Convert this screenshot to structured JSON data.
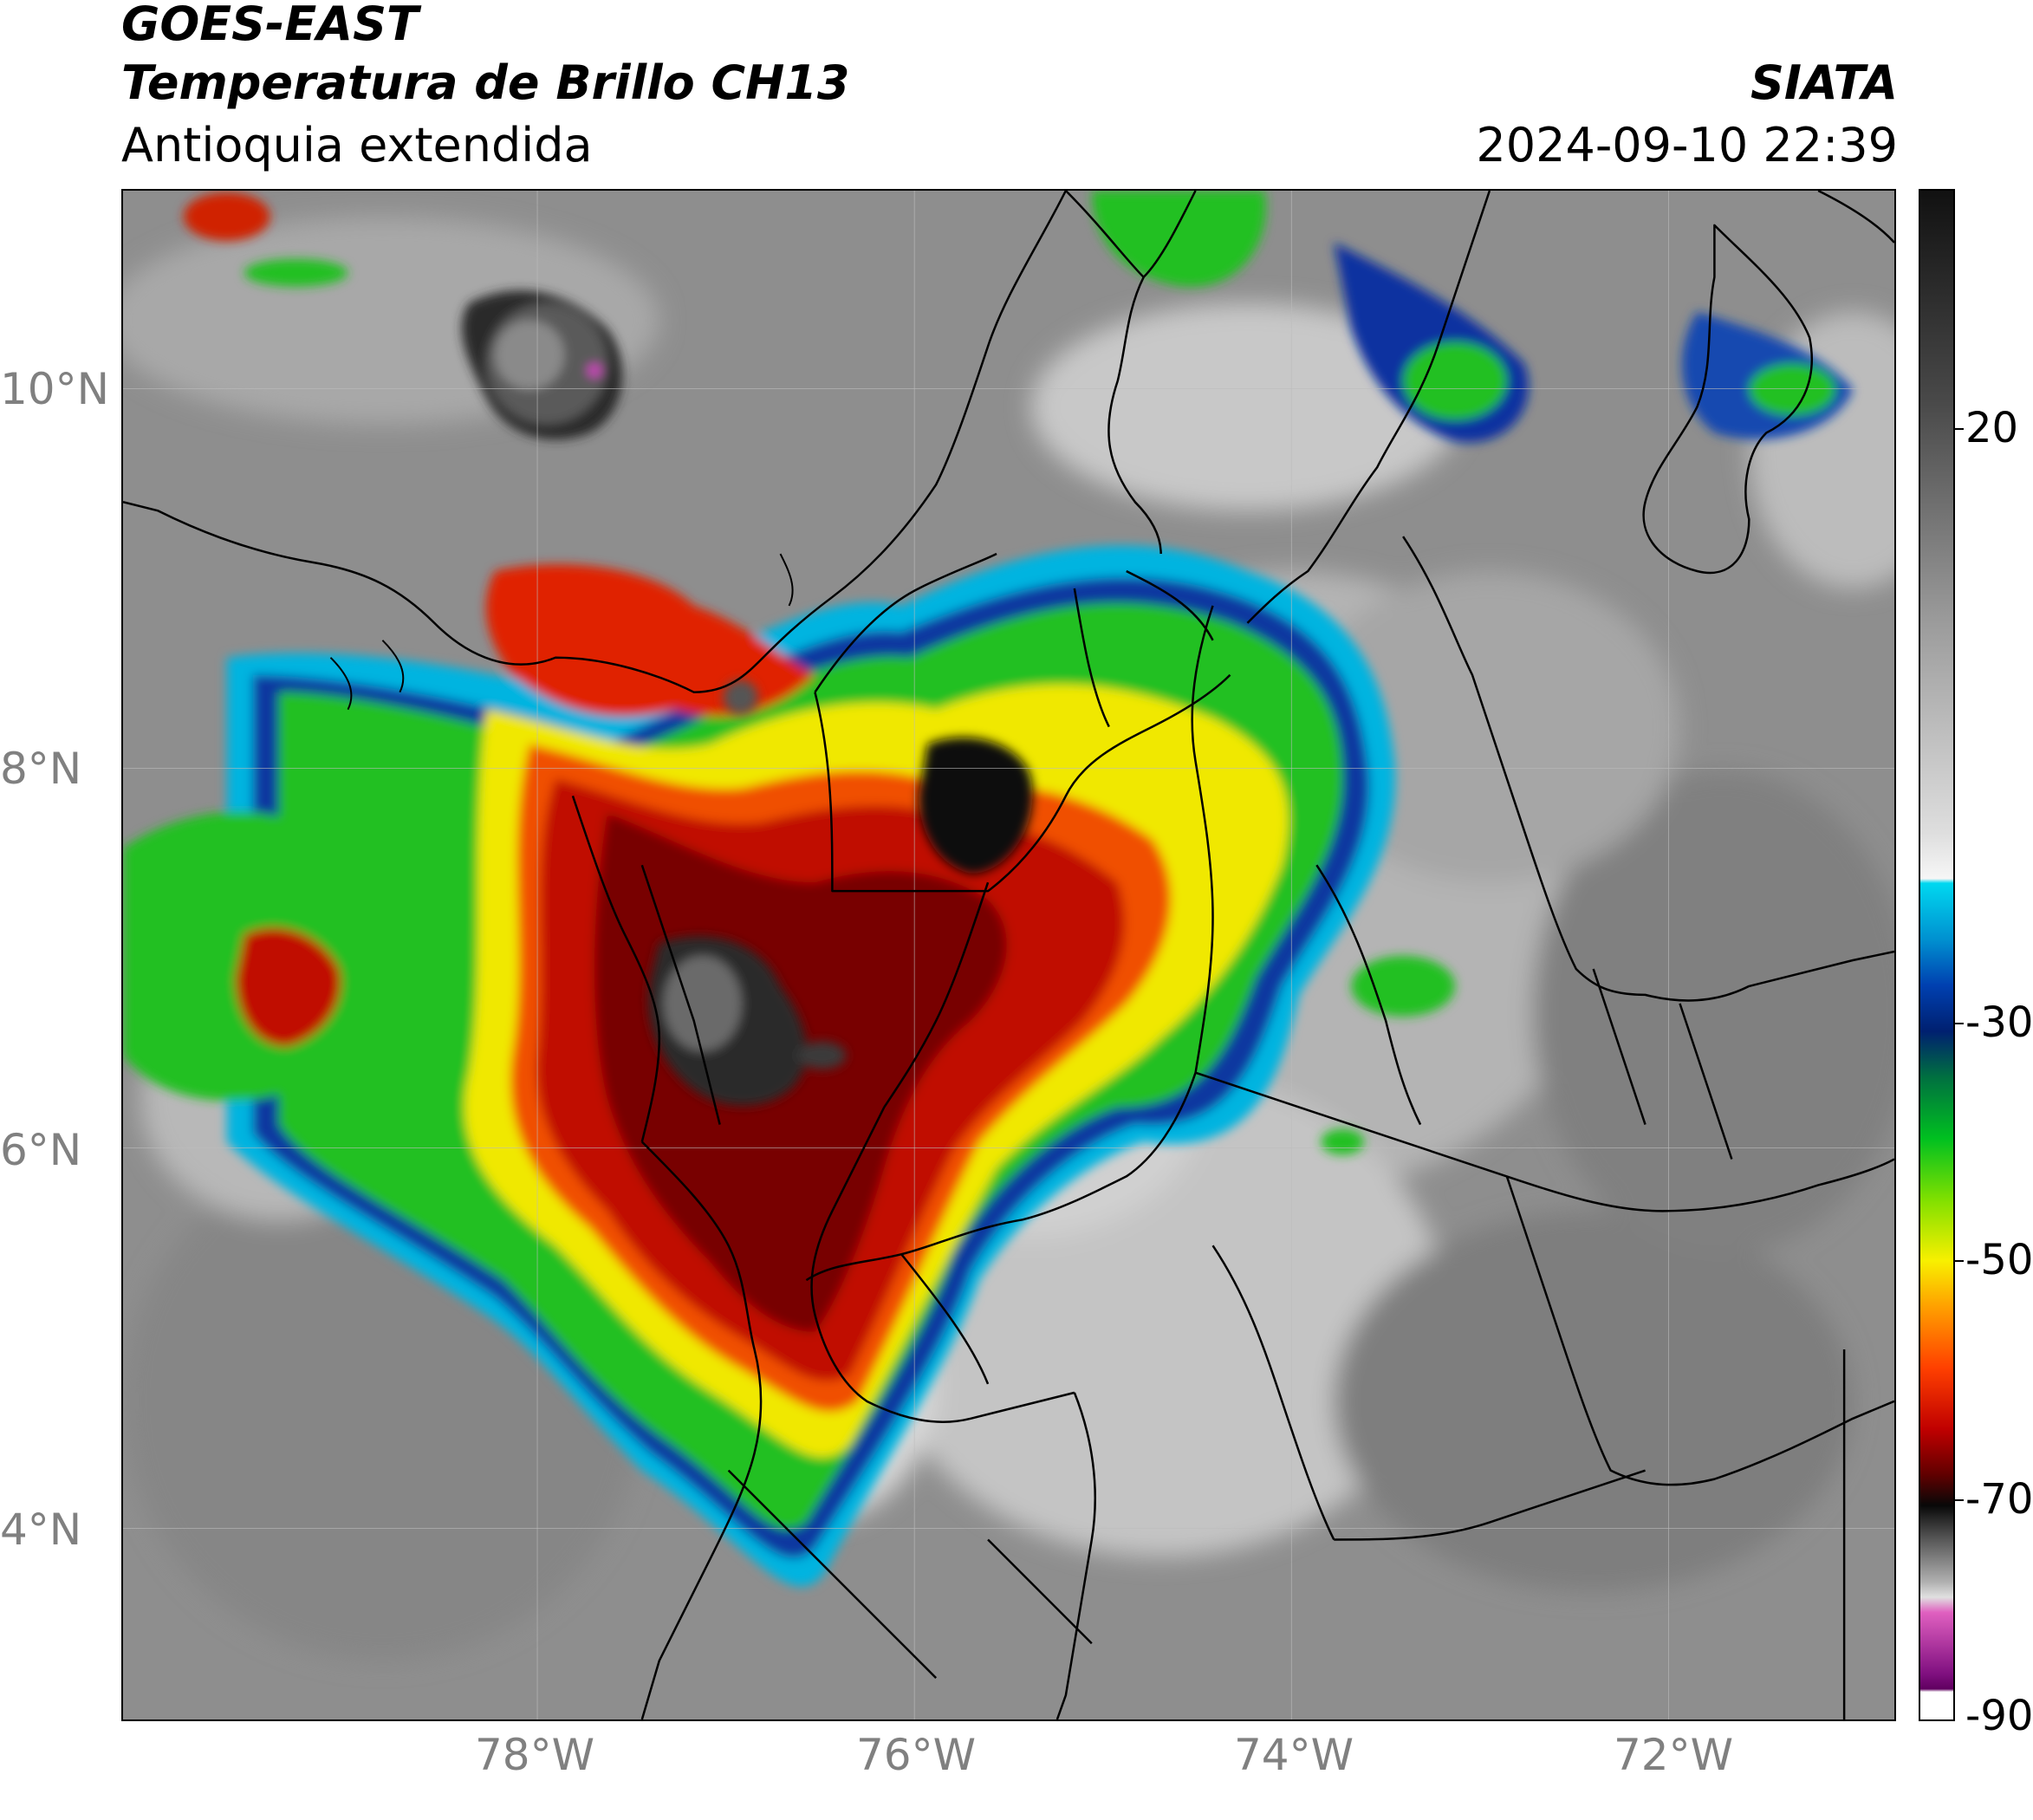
{
  "header": {
    "satellite": "GOES-EAST",
    "product": "Temperatura de Brillo CH13",
    "region": "Antioquia extendida",
    "organization": "SIATA",
    "datetime": "2024-09-10 22:39"
  },
  "map": {
    "lat_ticks": [
      "10°N",
      "8°N",
      "6°N",
      "4°N"
    ],
    "lon_ticks": [
      "78°W",
      "76°W",
      "74°W",
      "72°W"
    ],
    "lat_values": [
      10,
      8,
      6,
      4
    ],
    "lon_values": [
      -78,
      -76,
      -74,
      -72
    ],
    "extent": {
      "lon_min": -80.2,
      "lon_max": -70.8,
      "lat_min": 2.9,
      "lat_max": 10.95
    }
  },
  "colorbar": {
    "labels": [
      "20",
      "-30",
      "-50",
      "-70",
      "-90"
    ],
    "values": [
      20,
      -30,
      -50,
      -70,
      -90
    ],
    "range": [
      -92,
      37
    ],
    "colors": {
      "warm_gray_top": "#111111",
      "warm_gray_mid": "#8a8a8a",
      "near_white": "#f5f5f5",
      "cyan": "#00d8f0",
      "blue": "#0040b0",
      "navy": "#002070",
      "green": "#00c020",
      "lime": "#a0f000",
      "yellow": "#f8f000",
      "orange": "#ff9000",
      "red": "#e01000",
      "dark_red": "#700000",
      "black": "#080808",
      "gray": "#9a9a9a",
      "pink": "#e060c0",
      "purple": "#801080",
      "white_bottom": "#ffffff"
    }
  }
}
